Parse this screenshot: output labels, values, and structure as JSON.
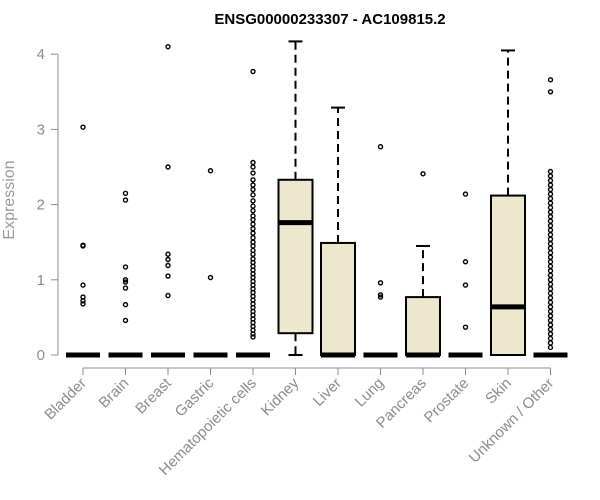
{
  "chart_data": {
    "type": "boxplot",
    "title": "ENSG00000233307 - AC109815.2",
    "ylabel": "Expression",
    "xlabel": "",
    "ylim": [
      0,
      4.2
    ],
    "yticks": [
      0,
      1,
      2,
      3,
      4
    ],
    "grid": false,
    "colors": {
      "box_fill": "#ede7cd",
      "axis": "#8c8c8c",
      "text": "#8c8c8c"
    },
    "categories": [
      "Bladder",
      "Brain",
      "Breast",
      "Gastric",
      "Hematopoietic cells",
      "Kidney",
      "Liver",
      "Lung",
      "Pancreas",
      "Prostate",
      "Skin",
      "Unknown / Other"
    ],
    "boxes": [
      {
        "category": "Bladder",
        "q1": 0,
        "median": 0,
        "q3": 0,
        "whisker_low": 0,
        "whisker_high": 0,
        "outliers": [
          3.03,
          1.46,
          1.45,
          0.93,
          0.77,
          0.72,
          0.68
        ]
      },
      {
        "category": "Brain",
        "q1": 0,
        "median": 0,
        "q3": 0,
        "whisker_low": 0,
        "whisker_high": 0,
        "outliers": [
          2.15,
          2.06,
          1.17,
          1.0,
          0.97,
          0.89,
          0.67,
          0.46
        ]
      },
      {
        "category": "Breast",
        "q1": 0,
        "median": 0,
        "q3": 0,
        "whisker_low": 0,
        "whisker_high": 0,
        "outliers": [
          4.1,
          2.5,
          1.34,
          1.27,
          1.19,
          1.05,
          0.79
        ]
      },
      {
        "category": "Gastric",
        "q1": 0,
        "median": 0,
        "q3": 0,
        "whisker_low": 0,
        "whisker_high": 0,
        "outliers": [
          2.45,
          1.03
        ]
      },
      {
        "category": "Hematopoietic cells",
        "q1": 0,
        "median": 0,
        "q3": 0,
        "whisker_low": 0,
        "whisker_high": 0,
        "outliers": [
          3.77,
          2.56,
          2.5,
          2.42,
          2.33,
          2.26,
          2.2,
          2.13,
          2.05,
          1.98,
          1.92,
          1.85,
          1.8,
          1.74,
          1.68,
          1.62,
          1.56,
          1.5,
          1.45,
          1.39,
          1.34,
          1.28,
          1.23,
          1.18,
          1.13,
          1.08,
          1.03,
          0.98,
          0.93,
          0.88,
          0.83,
          0.78,
          0.73,
          0.68,
          0.63,
          0.58,
          0.53,
          0.48,
          0.43,
          0.38,
          0.33,
          0.28,
          0.24
        ]
      },
      {
        "category": "Kidney",
        "q1": 0.29,
        "median": 1.76,
        "q3": 2.33,
        "whisker_low": 0,
        "whisker_high": 4.17,
        "outliers": []
      },
      {
        "category": "Liver",
        "q1": 0,
        "median": 0,
        "q3": 1.49,
        "whisker_low": 0,
        "whisker_high": 3.29,
        "outliers": []
      },
      {
        "category": "Lung",
        "q1": 0,
        "median": 0,
        "q3": 0,
        "whisker_low": 0,
        "whisker_high": 0,
        "outliers": [
          2.77,
          0.96,
          0.8,
          0.77
        ]
      },
      {
        "category": "Pancreas",
        "q1": 0,
        "median": 0,
        "q3": 0.77,
        "whisker_low": 0,
        "whisker_high": 1.45,
        "outliers": [
          2.41
        ]
      },
      {
        "category": "Prostate",
        "q1": 0,
        "median": 0,
        "q3": 0,
        "whisker_low": 0,
        "whisker_high": 0,
        "outliers": [
          2.14,
          1.24,
          0.93,
          0.37
        ]
      },
      {
        "category": "Skin",
        "q1": 0,
        "median": 0.64,
        "q3": 2.12,
        "whisker_low": 0,
        "whisker_high": 4.05,
        "outliers": []
      },
      {
        "category": "Unknown / Other",
        "q1": 0,
        "median": 0,
        "q3": 0,
        "whisker_low": 0,
        "whisker_high": 0,
        "outliers": [
          3.66,
          3.5,
          2.44,
          2.38,
          2.32,
          2.26,
          2.2,
          2.14,
          2.08,
          2.02,
          1.96,
          1.9,
          1.84,
          1.78,
          1.72,
          1.66,
          1.6,
          1.54,
          1.48,
          1.42,
          1.36,
          1.3,
          1.24,
          1.18,
          1.12,
          1.06,
          1.0,
          0.94,
          0.88,
          0.82,
          0.76,
          0.7,
          0.64,
          0.58,
          0.52,
          0.46,
          0.4,
          0.34,
          0.28,
          0.22,
          0.16,
          0.1
        ]
      }
    ]
  }
}
